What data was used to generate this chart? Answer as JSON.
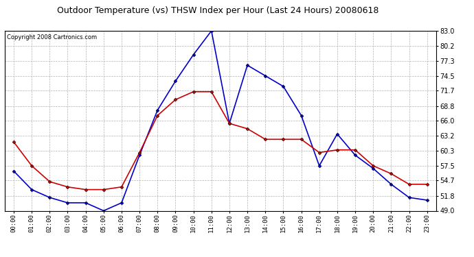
{
  "title": "Outdoor Temperature (vs) THSW Index per Hour (Last 24 Hours) 20080618",
  "copyright": "Copyright 2008 Cartronics.com",
  "hours": [
    "00:00",
    "01:00",
    "02:00",
    "03:00",
    "04:00",
    "05:00",
    "06:00",
    "07:00",
    "08:00",
    "09:00",
    "10:00",
    "11:00",
    "12:00",
    "13:00",
    "14:00",
    "15:00",
    "16:00",
    "17:00",
    "18:00",
    "19:00",
    "20:00",
    "21:00",
    "22:00",
    "23:00"
  ],
  "temp_red": [
    62.0,
    57.5,
    54.5,
    53.5,
    53.0,
    53.0,
    53.5,
    60.0,
    67.0,
    70.0,
    71.5,
    71.5,
    65.5,
    64.5,
    62.5,
    62.5,
    62.5,
    60.0,
    60.5,
    60.5,
    57.5,
    56.0,
    54.0,
    54.0
  ],
  "thsw_blue": [
    56.5,
    53.0,
    51.5,
    50.5,
    50.5,
    49.0,
    50.5,
    59.5,
    68.0,
    73.5,
    78.5,
    83.0,
    65.5,
    76.5,
    74.5,
    72.5,
    67.0,
    57.5,
    63.5,
    59.5,
    57.0,
    54.0,
    51.5,
    51.0
  ],
  "ylim": [
    49.0,
    83.0
  ],
  "yticks": [
    49.0,
    51.8,
    54.7,
    57.5,
    60.3,
    63.2,
    66.0,
    68.8,
    71.7,
    74.5,
    77.3,
    80.2,
    83.0
  ],
  "ytick_labels": [
    "49.0",
    "51.8",
    "54.7",
    "57.5",
    "60.3",
    "63.2",
    "66.0",
    "68.8",
    "71.7",
    "74.5",
    "77.3",
    "80.2",
    "83.0"
  ],
  "temp_color": "#cc0000",
  "thsw_color": "#0000cc",
  "bg_color": "#ffffff",
  "plot_bg_color": "#ffffff",
  "grid_color": "#aaaaaa",
  "title_fontsize": 9,
  "copyright_fontsize": 6,
  "marker": "D",
  "marker_size": 2.5,
  "line_width": 1.2
}
